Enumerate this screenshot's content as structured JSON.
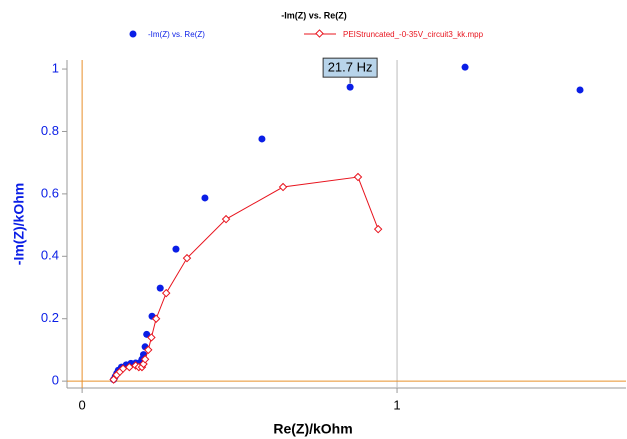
{
  "chart_data": {
    "type": "scatter-line",
    "title": "-Im(Z) vs. Re(Z)",
    "x_label": "Re(Z)/kOhm",
    "y_label": "-Im(Z)/kOhm",
    "xlim": [
      -0.048,
      1.727
    ],
    "ylim": [
      -0.022,
      1.029
    ],
    "xticks": [
      0,
      1
    ],
    "yticks": [
      0,
      0.2,
      0.4,
      0.6,
      0.8,
      1
    ],
    "grid": {
      "x": true,
      "y": false
    },
    "zero_line_color": "#e8902a",
    "series": [
      {
        "name": "-Im(Z) vs. Re(Z)",
        "color": "#0a1ee6",
        "style": "points",
        "x": [
          0.1,
          0.105,
          0.11,
          0.115,
          0.125,
          0.14,
          0.155,
          0.17,
          0.185,
          0.19,
          0.195,
          0.2,
          0.205,
          0.222,
          0.248,
          0.298,
          0.39,
          0.571,
          0.851,
          1.216,
          1.581
        ],
        "values": [
          0.005,
          0.015,
          0.025,
          0.035,
          0.045,
          0.052,
          0.057,
          0.058,
          0.06,
          0.07,
          0.085,
          0.11,
          0.15,
          0.208,
          0.298,
          0.423,
          0.587,
          0.776,
          0.942,
          1.006,
          0.933
        ]
      },
      {
        "name": "PEIStruncated_-0-35V_circuit3_kk.mpp",
        "color": "#e8141e",
        "style": "line-diamonds",
        "x": [
          0.1,
          0.11,
          0.12,
          0.13,
          0.15,
          0.17,
          0.18,
          0.19,
          0.195,
          0.2,
          0.21,
          0.22,
          0.235,
          0.267,
          0.333,
          0.457,
          0.638,
          0.876,
          0.94
        ],
        "values": [
          0.005,
          0.02,
          0.03,
          0.04,
          0.045,
          0.05,
          0.045,
          0.045,
          0.055,
          0.07,
          0.1,
          0.14,
          0.2,
          0.282,
          0.394,
          0.519,
          0.622,
          0.654,
          0.487
        ]
      }
    ],
    "annotation": {
      "text": "21.7 Hz",
      "x": 0.851,
      "y": 0.942
    }
  }
}
